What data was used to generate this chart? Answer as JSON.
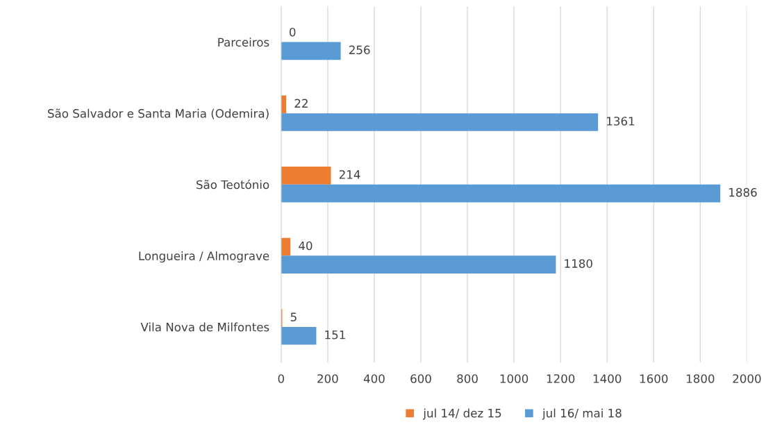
{
  "chart_data": {
    "type": "bar",
    "orientation": "horizontal",
    "categories": [
      "Parceiros",
      "São Salvador e Santa Maria (Odemira)",
      "São Teotónio",
      "Longueira / Almograve",
      "Vila Nova de Milfontes"
    ],
    "series": [
      {
        "name": "jul 14/ dez 15",
        "color": "#ed7d31",
        "values": [
          0,
          22,
          214,
          40,
          5
        ]
      },
      {
        "name": "jul 16/ mai 18",
        "color": "#5b9bd5",
        "values": [
          256,
          1361,
          1886,
          1180,
          151
        ]
      }
    ],
    "xlim": [
      0,
      2000
    ],
    "xticks": [
      0,
      200,
      400,
      600,
      800,
      1000,
      1200,
      1400,
      1600,
      1800,
      2000
    ],
    "grid": "x",
    "legend": "bottom",
    "data_labels": true
  }
}
